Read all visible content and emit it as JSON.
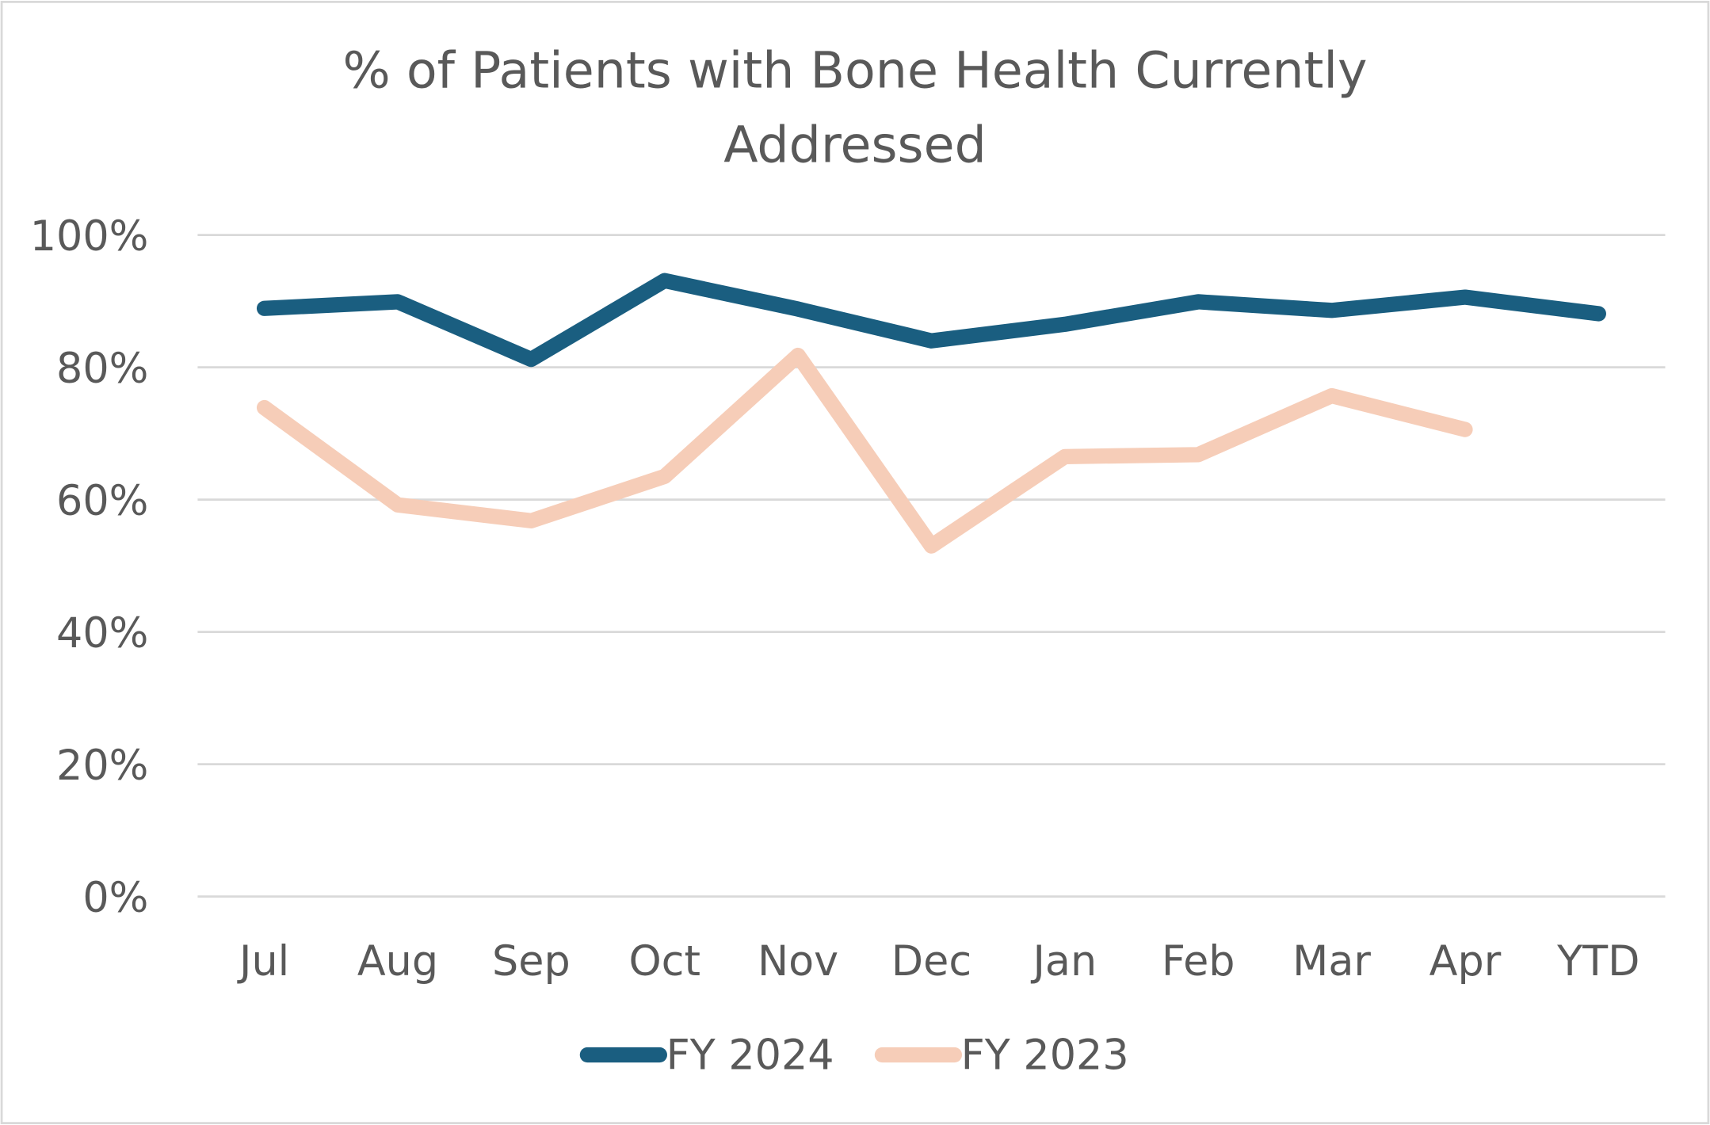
{
  "chart_data": {
    "type": "line",
    "title_lines": [
      "% of Patients with Bone Health Currently",
      "Addressed"
    ],
    "categories": [
      "Jul",
      "Aug",
      "Sep",
      "Oct",
      "Nov",
      "Dec",
      "Jan",
      "Feb",
      "Mar",
      "Apr",
      "YTD"
    ],
    "yticks": [
      "0%",
      "20%",
      "40%",
      "60%",
      "80%",
      "100%"
    ],
    "ylim": [
      0,
      100
    ],
    "grid": true,
    "legend_position": "bottom",
    "series": [
      {
        "name": "FY 2024",
        "color": "#1a5e80",
        "values": [
          88.9,
          89.9,
          81.2,
          93.1,
          88.8,
          84.0,
          86.5,
          89.9,
          88.6,
          90.6,
          88.1
        ]
      },
      {
        "name": "FY 2023",
        "color": "#f6cdb8",
        "values": [
          73.9,
          59.2,
          56.8,
          63.5,
          81.8,
          53.0,
          66.5,
          66.8,
          75.7,
          70.6,
          null
        ]
      }
    ]
  }
}
